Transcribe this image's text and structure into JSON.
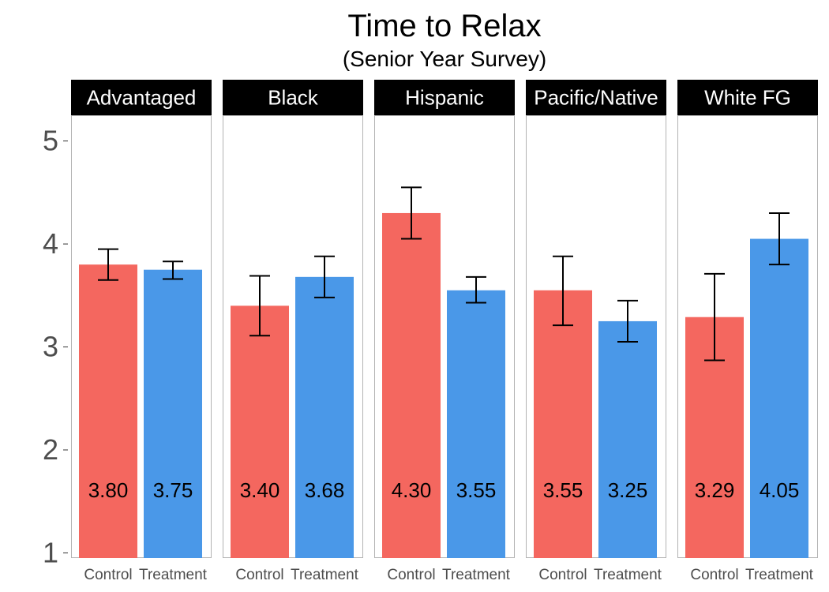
{
  "chart_data": {
    "type": "bar",
    "title": "Time to Relax",
    "subtitle": "(Senior Year Survey)",
    "xlabel": "",
    "ylabel": "",
    "ylim": [
      0.95,
      5.25
    ],
    "yticks": [
      1,
      2,
      3,
      4,
      5
    ],
    "grid": false,
    "legend": "none",
    "categories": [
      "Control",
      "Treatment"
    ],
    "colors": {
      "Control": "#F4675F",
      "Treatment": "#4A98E8"
    },
    "panels": [
      {
        "label": "Advantaged",
        "bars": [
          {
            "category": "Control",
            "value": 3.8,
            "label": "3.80",
            "err_low": 3.65,
            "err_high": 3.95
          },
          {
            "category": "Treatment",
            "value": 3.75,
            "label": "3.75",
            "err_low": 3.66,
            "err_high": 3.83
          }
        ]
      },
      {
        "label": "Black",
        "bars": [
          {
            "category": "Control",
            "value": 3.4,
            "label": "3.40",
            "err_low": 3.11,
            "err_high": 3.69
          },
          {
            "category": "Treatment",
            "value": 3.68,
            "label": "3.68",
            "err_low": 3.48,
            "err_high": 3.88
          }
        ]
      },
      {
        "label": "Hispanic",
        "bars": [
          {
            "category": "Control",
            "value": 4.3,
            "label": "4.30",
            "err_low": 4.05,
            "err_high": 4.55
          },
          {
            "category": "Treatment",
            "value": 3.55,
            "label": "3.55",
            "err_low": 3.43,
            "err_high": 3.68
          }
        ]
      },
      {
        "label": "Pacific/Native",
        "bars": [
          {
            "category": "Control",
            "value": 3.55,
            "label": "3.55",
            "err_low": 3.21,
            "err_high": 3.88
          },
          {
            "category": "Treatment",
            "value": 3.25,
            "label": "3.25",
            "err_low": 3.05,
            "err_high": 3.45
          }
        ]
      },
      {
        "label": "White FG",
        "bars": [
          {
            "category": "Control",
            "value": 3.29,
            "label": "3.29",
            "err_low": 2.87,
            "err_high": 3.71
          },
          {
            "category": "Treatment",
            "value": 4.05,
            "label": "4.05",
            "err_low": 3.8,
            "err_high": 4.3
          }
        ]
      }
    ]
  }
}
